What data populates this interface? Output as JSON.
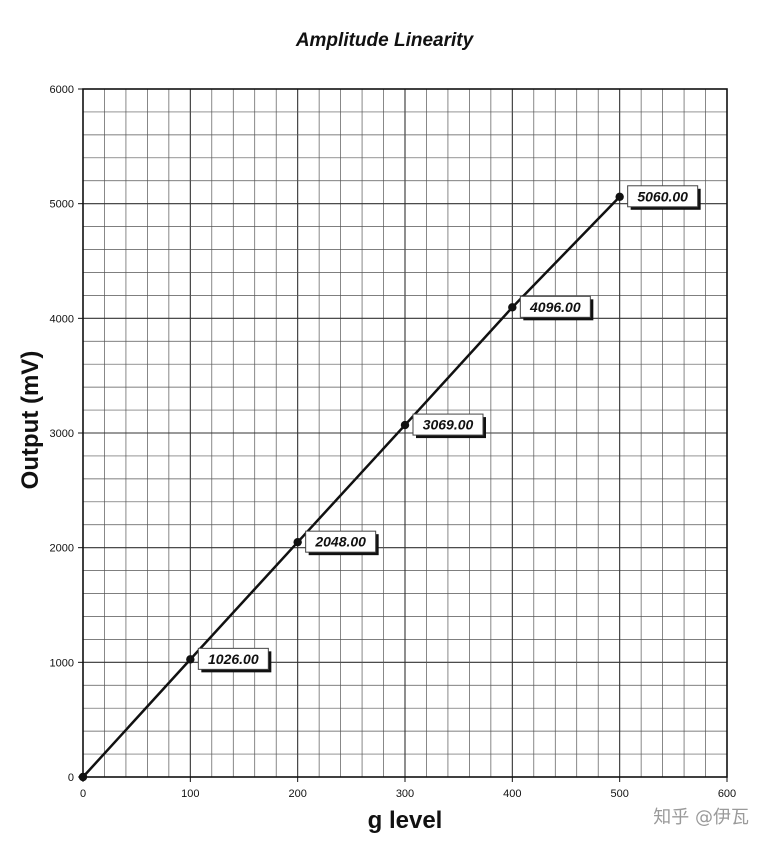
{
  "chart_data": {
    "type": "line",
    "title": "Amplitude Linearity",
    "xlabel": "g level",
    "ylabel": "Output (mV)",
    "xlim": [
      0,
      600
    ],
    "ylim": [
      0,
      6000
    ],
    "x_ticks": [
      "0",
      "100",
      "200",
      "300",
      "400",
      "500",
      "600"
    ],
    "y_ticks": [
      "0",
      "1000",
      "2000",
      "3000",
      "4000",
      "5000",
      "6000"
    ],
    "grid": true,
    "series": [
      {
        "x": [
          0,
          100,
          200,
          300,
          400,
          500
        ],
        "y": [
          0,
          1026,
          2048,
          3069,
          4096,
          5060
        ]
      }
    ],
    "data_labels": [
      {
        "x": 100,
        "y": 1026,
        "text": "1026.00"
      },
      {
        "x": 200,
        "y": 2048,
        "text": "2048.00"
      },
      {
        "x": 300,
        "y": 3069,
        "text": "3069.00"
      },
      {
        "x": 400,
        "y": 4096,
        "text": "4096.00"
      },
      {
        "x": 500,
        "y": 5060,
        "text": "5060.00"
      }
    ]
  },
  "watermark": "知乎 @伊瓦"
}
